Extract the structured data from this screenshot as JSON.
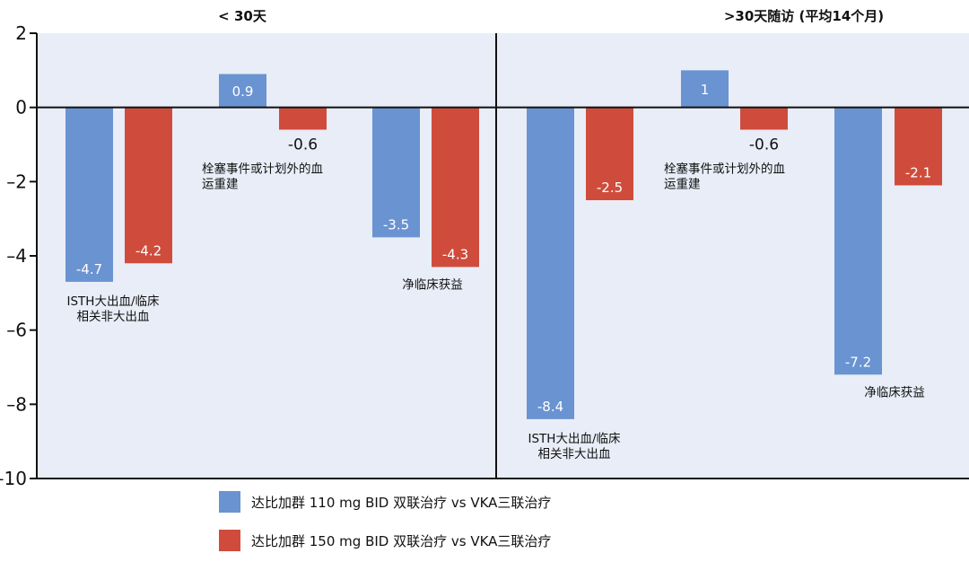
{
  "chart_data": {
    "type": "bar",
    "ylim": [
      -10,
      2
    ],
    "yticks": [
      2,
      0,
      -2,
      -4,
      -6,
      -8,
      -10
    ],
    "grid": false,
    "legend_position": "bottom",
    "panels": [
      {
        "title": "< 30天",
        "groups": [
          {
            "label_lines": [
              "ISTH大出血/临床",
              "相关非大出血"
            ],
            "values": [
              -4.7,
              -4.2
            ],
            "value_labels": [
              "-4.7",
              "-4.2"
            ]
          },
          {
            "label_lines": [
              "栓塞事件或计划外的血",
              "运重建"
            ],
            "values": [
              0.9,
              -0.6
            ],
            "value_labels": [
              "0.9",
              "-0.6"
            ]
          },
          {
            "label_lines": [
              "净临床获益"
            ],
            "values": [
              -3.5,
              -4.3
            ],
            "value_labels": [
              "-3.5",
              "-4.3"
            ]
          }
        ]
      },
      {
        "title": ">30天随访 (平均14个月)",
        "groups": [
          {
            "label_lines": [
              "ISTH大出血/临床",
              "相关非大出血"
            ],
            "values": [
              -8.4,
              -2.5
            ],
            "value_labels": [
              "-8.4",
              "-2.5"
            ]
          },
          {
            "label_lines": [
              "栓塞事件或计划外的血",
              "运重建"
            ],
            "values": [
              1,
              -0.6
            ],
            "value_labels": [
              "1",
              "-0.6"
            ]
          },
          {
            "label_lines": [
              "净临床获益"
            ],
            "values": [
              -7.2,
              -2.1
            ],
            "value_labels": [
              "-7.2",
              "-2.1"
            ]
          }
        ]
      }
    ],
    "series": [
      {
        "name": "达比加群 110 mg BID 双联治疗 vs VKA三联治疗",
        "color": "#6a93d1"
      },
      {
        "name": "达比加群 150 mg BID 双联治疗 vs VKA三联治疗",
        "color": "#cf4c3c"
      }
    ],
    "colors": {
      "plot_bg": "#e8edf7",
      "axis": "#111111"
    }
  }
}
